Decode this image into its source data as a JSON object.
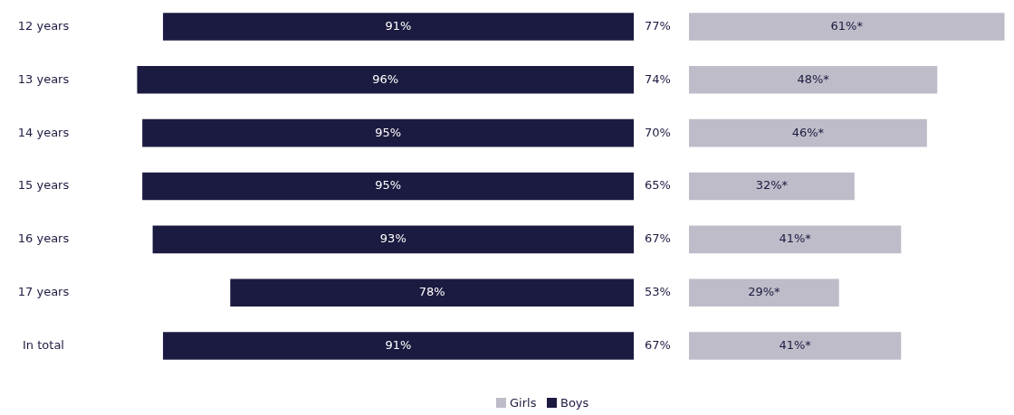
{
  "chart_data": [
    {
      "type": "bar",
      "orientation": "horizontal",
      "categories": [
        "12 years",
        "13 years",
        "14 years",
        "15 years",
        "16 years",
        "17 years",
        "In total"
      ],
      "series": [
        {
          "name": "Boys",
          "color": "#1b1a40",
          "values": [
            91,
            96,
            95,
            95,
            93,
            78,
            91
          ],
          "value_labels": [
            "91%",
            "96%",
            "95%",
            "95%",
            "93%",
            "78%",
            "91%"
          ]
        }
      ],
      "annotations": [
        "77%",
        "74%",
        "70%",
        "65%",
        "67%",
        "53%",
        "67%"
      ],
      "legend": "bottom"
    },
    {
      "type": "bar",
      "orientation": "horizontal",
      "categories": [
        null,
        null,
        null,
        null,
        null,
        null,
        null
      ],
      "series": [
        {
          "name": "Girls",
          "color": "#bdbcc8",
          "values": [
            61,
            48,
            46,
            32,
            41,
            29,
            41
          ],
          "value_labels": [
            "61%*",
            "48%*",
            "46%*",
            "32%*",
            "41%*",
            "29%*",
            "41%*"
          ]
        }
      ],
      "legend": "bottom"
    }
  ]
}
